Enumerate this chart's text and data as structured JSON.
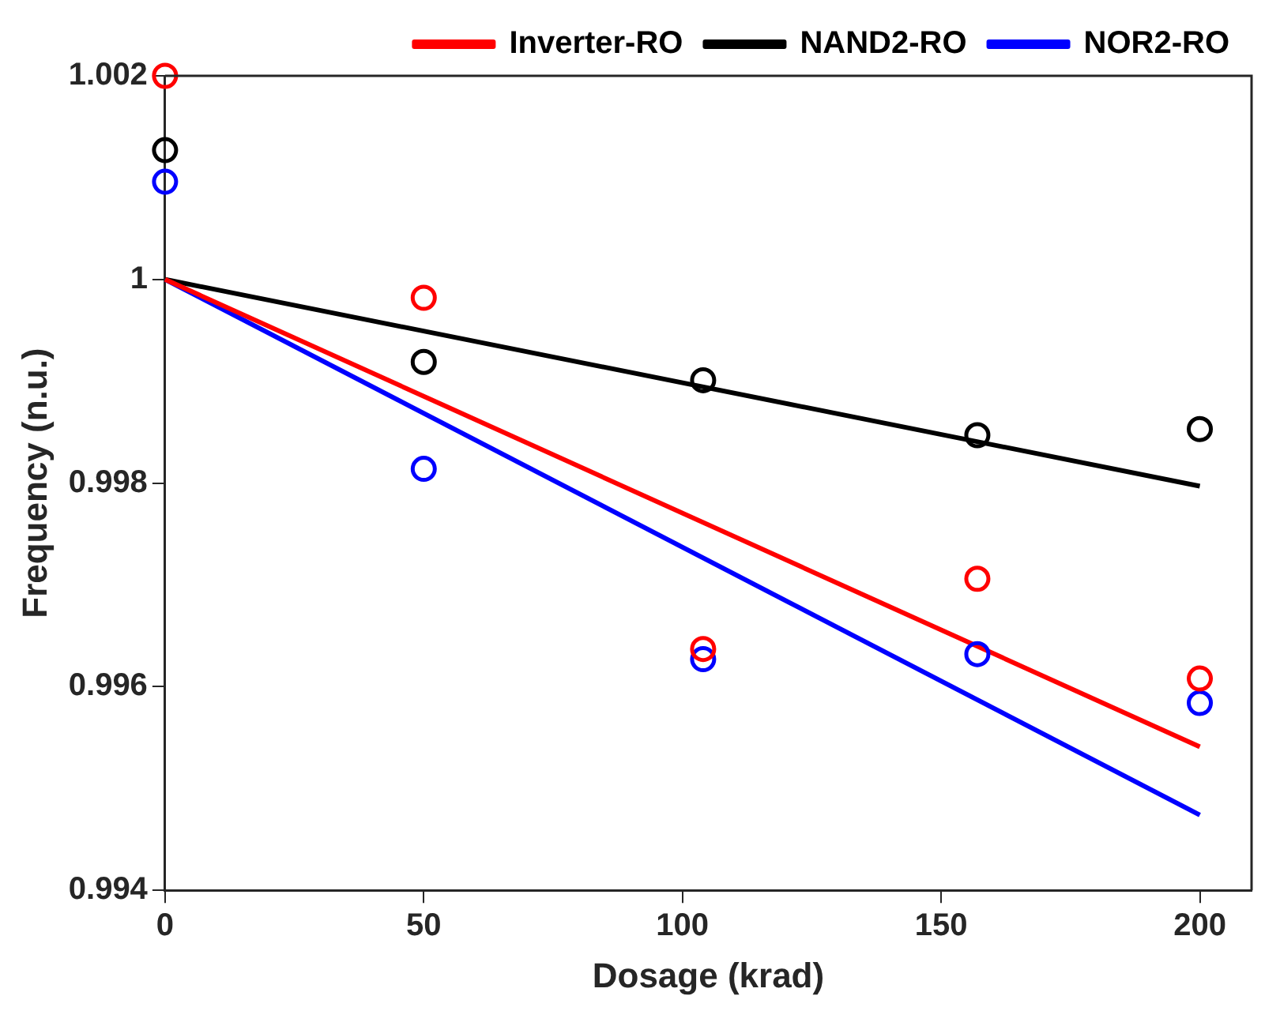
{
  "chart_data": {
    "type": "scatter",
    "xlabel": "Dosage (krad)",
    "ylabel": "Frequency (n.u.)",
    "xlim": [
      0,
      210
    ],
    "xticks": [
      0,
      50,
      100,
      150,
      200
    ],
    "ylim": [
      0.994,
      1.002
    ],
    "yticks": [
      0.994,
      0.996,
      0.998,
      1,
      1.002
    ],
    "grid": false,
    "legend": "top",
    "marker": "circle",
    "series": [
      {
        "color": "#ff0000",
        "x": [
          0,
          50,
          104,
          157,
          200
        ],
        "values": [
          1.002,
          0.99982,
          0.99637,
          0.99706,
          0.99608
        ]
      },
      {
        "color": "#000000",
        "x": [
          0,
          50,
          104,
          157,
          200
        ],
        "values": [
          1.00127,
          0.99919,
          0.99901,
          0.99847,
          0.99853
        ]
      },
      {
        "color": "#0000ff",
        "x": [
          0,
          50,
          104,
          157,
          200
        ],
        "values": [
          1.00096,
          0.99814,
          0.99627,
          0.99632,
          0.99584
        ]
      },
      {
        "type": "line",
        "name": "Inverter-RO",
        "color": "#ff0000",
        "marker": "none",
        "x": [
          0,
          200
        ],
        "values": [
          1,
          0.99541
        ]
      },
      {
        "type": "line",
        "name": "NAND2-RO",
        "color": "#000000",
        "marker": "none",
        "x": [
          0,
          200
        ],
        "values": [
          1,
          0.99797
        ]
      },
      {
        "type": "line",
        "name": "NOR2-RO",
        "color": "#0000ff",
        "marker": "none",
        "x": [
          0,
          200
        ],
        "values": [
          1,
          0.99474
        ]
      }
    ]
  }
}
